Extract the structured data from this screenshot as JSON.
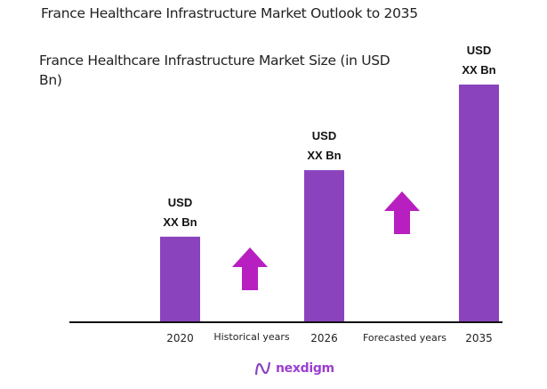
{
  "chart_data": {
    "type": "bar",
    "title": "France Healthcare Infrastructure Market Outlook to 2035",
    "subtitle": "France Healthcare Infrastructure Market Size (in USD Bn)",
    "categories": [
      "2020",
      "2026",
      "2035"
    ],
    "values": [
      36,
      64,
      100
    ],
    "data_labels": [
      [
        "USD",
        "XX Bn"
      ],
      [
        "USD",
        "XX Bn"
      ],
      [
        "USD",
        "XX Bn"
      ]
    ],
    "period_labels": [
      "Historical years",
      "Forecasted years"
    ],
    "xlabel": "",
    "ylabel": "",
    "grid": false,
    "colors": {
      "bar": "#8a43bd",
      "arrow": "#b81fc0",
      "axis": "#111111"
    }
  },
  "logo": {
    "text": "nexdigm"
  }
}
